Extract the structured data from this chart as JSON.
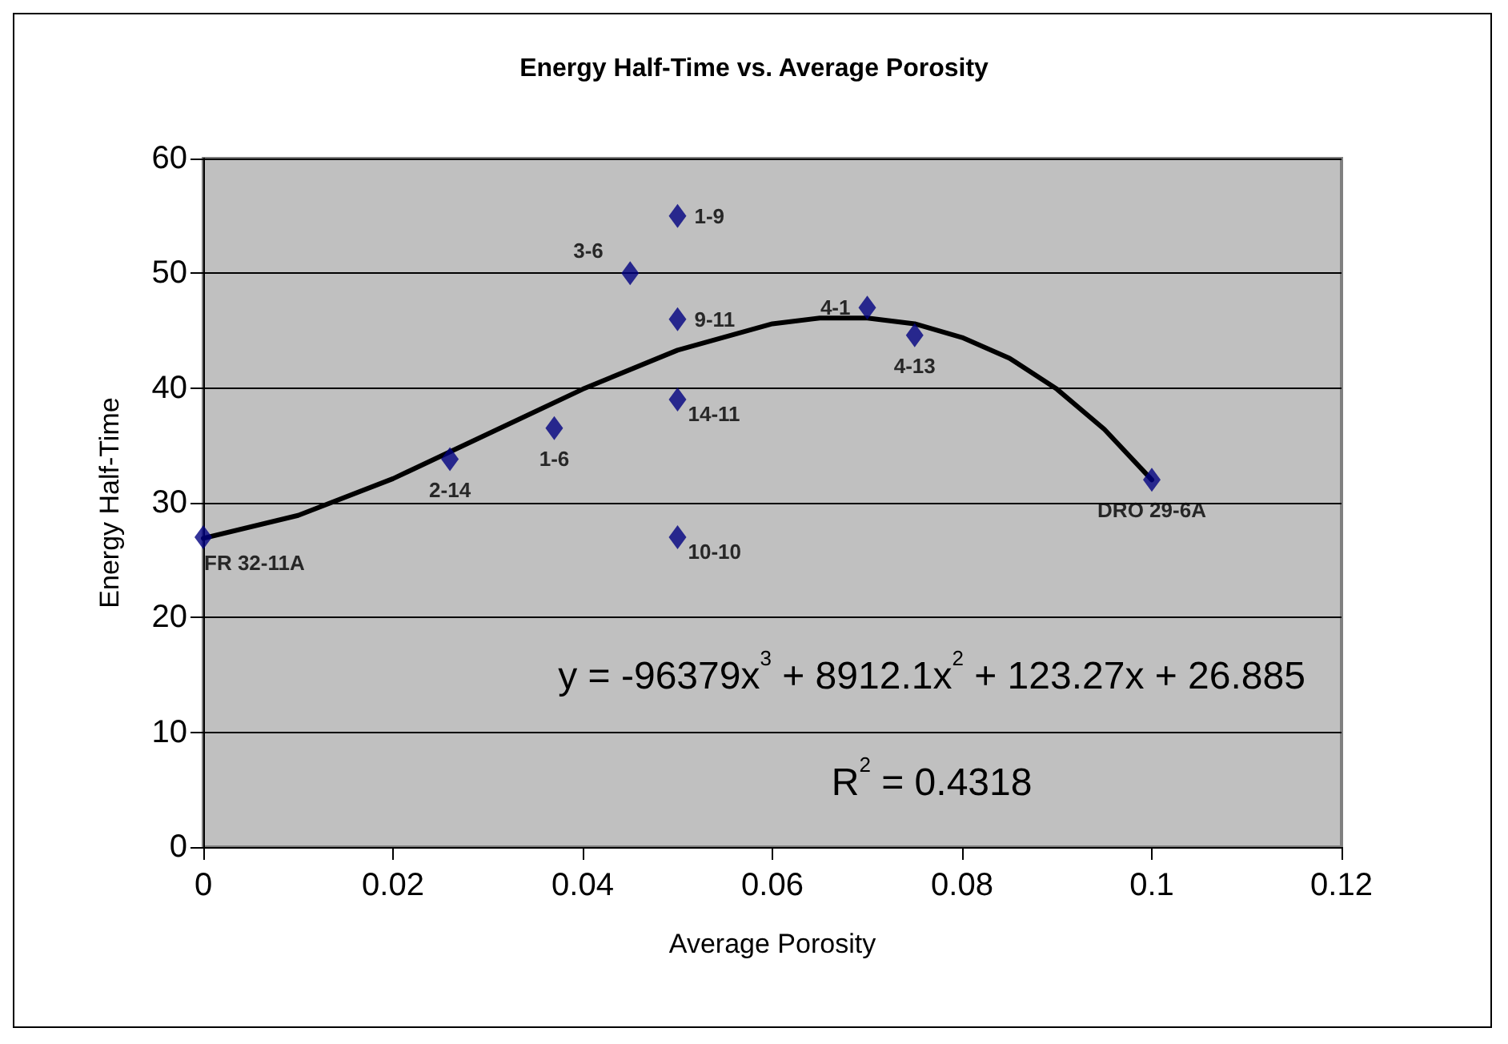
{
  "chart_data": {
    "type": "scatter",
    "title": "Energy Half-Time vs. Average Porosity",
    "xlabel": "Average Porosity",
    "ylabel": "Energy Half-Time",
    "xlim": [
      0,
      0.12
    ],
    "xticks": [
      0,
      0.02,
      0.04,
      0.06,
      0.08,
      0.1,
      0.12
    ],
    "ylim": [
      0,
      60
    ],
    "yticks": [
      0,
      10,
      20,
      30,
      40,
      50,
      60
    ],
    "grid": "y",
    "legend": false,
    "marker": "diamond",
    "annotations": [
      "y = -96379x$^{3}$ + 8912.1x$^{2}$ + 123.27x + 26.885",
      "R$^{2}$ = 0.4318"
    ],
    "series": [
      {
        "name": "FR 32-11A",
        "color": "#000080",
        "x": [
          0
        ],
        "values": [
          27
        ]
      },
      {
        "name": "2-14",
        "color": "#000080",
        "x": [
          0.026
        ],
        "values": [
          33.8
        ]
      },
      {
        "name": "1-6",
        "color": "#000080",
        "x": [
          0.037
        ],
        "values": [
          36.5
        ]
      },
      {
        "name": "3-6",
        "color": "#000080",
        "x": [
          0.045
        ],
        "values": [
          50
        ]
      },
      {
        "name": "1-9",
        "color": "#000080",
        "x": [
          0.05
        ],
        "values": [
          55
        ]
      },
      {
        "name": "9-11",
        "color": "#000080",
        "x": [
          0.05
        ],
        "values": [
          46
        ]
      },
      {
        "name": "14-11",
        "color": "#000080",
        "x": [
          0.05
        ],
        "values": [
          39
        ]
      },
      {
        "name": "10-10",
        "color": "#000080",
        "x": [
          0.05
        ],
        "values": [
          27
        ]
      },
      {
        "name": "4-1",
        "color": "#000080",
        "x": [
          0.07
        ],
        "values": [
          47
        ]
      },
      {
        "name": "4-13",
        "color": "#000080",
        "x": [
          0.075
        ],
        "values": [
          44.6
        ]
      },
      {
        "name": "DRO 29-6A",
        "color": "#000080",
        "x": [
          0.1
        ],
        "values": [
          32
        ]
      },
      {
        "type": "line",
        "color": "#000000",
        "marker": "none",
        "line_style": "solid",
        "x": [
          0,
          0.01,
          0.02,
          0.03,
          0.04,
          0.05,
          0.06,
          0.065,
          0.07,
          0.075,
          0.08,
          0.085,
          0.09,
          0.095,
          0.1
        ],
        "values": [
          26.9,
          28.9,
          32.1,
          36.0,
          39.9,
          43.3,
          45.6,
          46.1,
          46.1,
          45.6,
          44.4,
          42.6,
          39.9,
          36.4,
          32.0
        ]
      }
    ]
  }
}
